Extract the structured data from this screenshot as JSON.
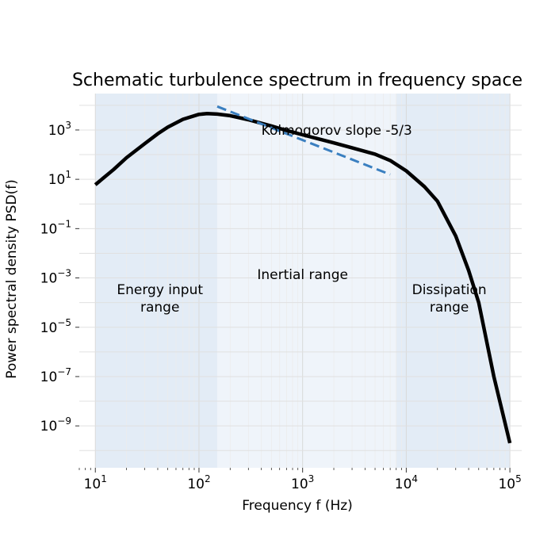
{
  "chart_data": {
    "type": "line",
    "title": "Schematic turbulence spectrum in frequency space",
    "xlabel": "Frequency f (Hz)",
    "ylabel": "Power spectral density PSD(f)",
    "xscale": "log",
    "yscale": "log",
    "xlim": [
      7,
      130000
    ],
    "ylim": [
      2e-11,
      30000.0
    ],
    "grid": true,
    "x_ticks": [
      {
        "value": 10,
        "base": "10",
        "exp": "1"
      },
      {
        "value": 100,
        "base": "10",
        "exp": "2"
      },
      {
        "value": 1000,
        "base": "10",
        "exp": "3"
      },
      {
        "value": 10000,
        "base": "10",
        "exp": "4"
      },
      {
        "value": 100000,
        "base": "10",
        "exp": "5"
      }
    ],
    "y_ticks": [
      {
        "value": 1000,
        "base": "10",
        "exp": "3"
      },
      {
        "value": 10,
        "base": "10",
        "exp": "1"
      },
      {
        "value": 0.1,
        "base": "10",
        "exp": "−1"
      },
      {
        "value": 0.001,
        "base": "10",
        "exp": "−3"
      },
      {
        "value": 1e-05,
        "base": "10",
        "exp": "−5"
      },
      {
        "value": 1e-07,
        "base": "10",
        "exp": "−7"
      },
      {
        "value": 1e-09,
        "base": "10",
        "exp": "−9"
      }
    ],
    "regions": [
      {
        "name": "energy-input-region",
        "x_start": 10,
        "x_end": 150,
        "color": "#e3ecf6",
        "label_lines": [
          "Energy input",
          "range"
        ],
        "label_x": 42,
        "label_y": 0.00022
      },
      {
        "name": "inertial-region",
        "x_start": 150,
        "x_end": 8000,
        "color": "#eff4fa",
        "label_lines": [
          "Inertial range"
        ],
        "label_x": 1000,
        "label_y": 0.0009
      },
      {
        "name": "dissipation-region",
        "x_start": 8000,
        "x_end": 100000,
        "color": "#e3ecf6",
        "label_lines": [
          "Dissipation",
          "range"
        ],
        "label_x": 26000,
        "label_y": 0.00022
      }
    ],
    "series": [
      {
        "name": "PSD",
        "color": "#000000",
        "style": "solid",
        "x": [
          10,
          15,
          20,
          30,
          40,
          50,
          70,
          100,
          120,
          150,
          200,
          300,
          500,
          700,
          1000,
          2000,
          3000,
          5000,
          7000,
          10000,
          15000,
          20000,
          30000,
          40000,
          50000,
          70000,
          100000
        ],
        "y": [
          6,
          25,
          75,
          280,
          700,
          1300,
          2700,
          4300,
          4600,
          4400,
          3800,
          2600,
          1450,
          950,
          640,
          300,
          190,
          105,
          58,
          22,
          5,
          1.3,
          0.05,
          0.002,
          0.0001,
          1e-07,
          2e-10
        ]
      },
      {
        "name": "Kolmogorov slope",
        "color": "#3a7fc0",
        "style": "dashed",
        "x": [
          150,
          7000
        ],
        "y": [
          9000,
          15.6
        ]
      }
    ],
    "annotations": [
      {
        "text": "Kolmogorov slope  -5/3",
        "x": 400,
        "y": 1000
      }
    ]
  }
}
